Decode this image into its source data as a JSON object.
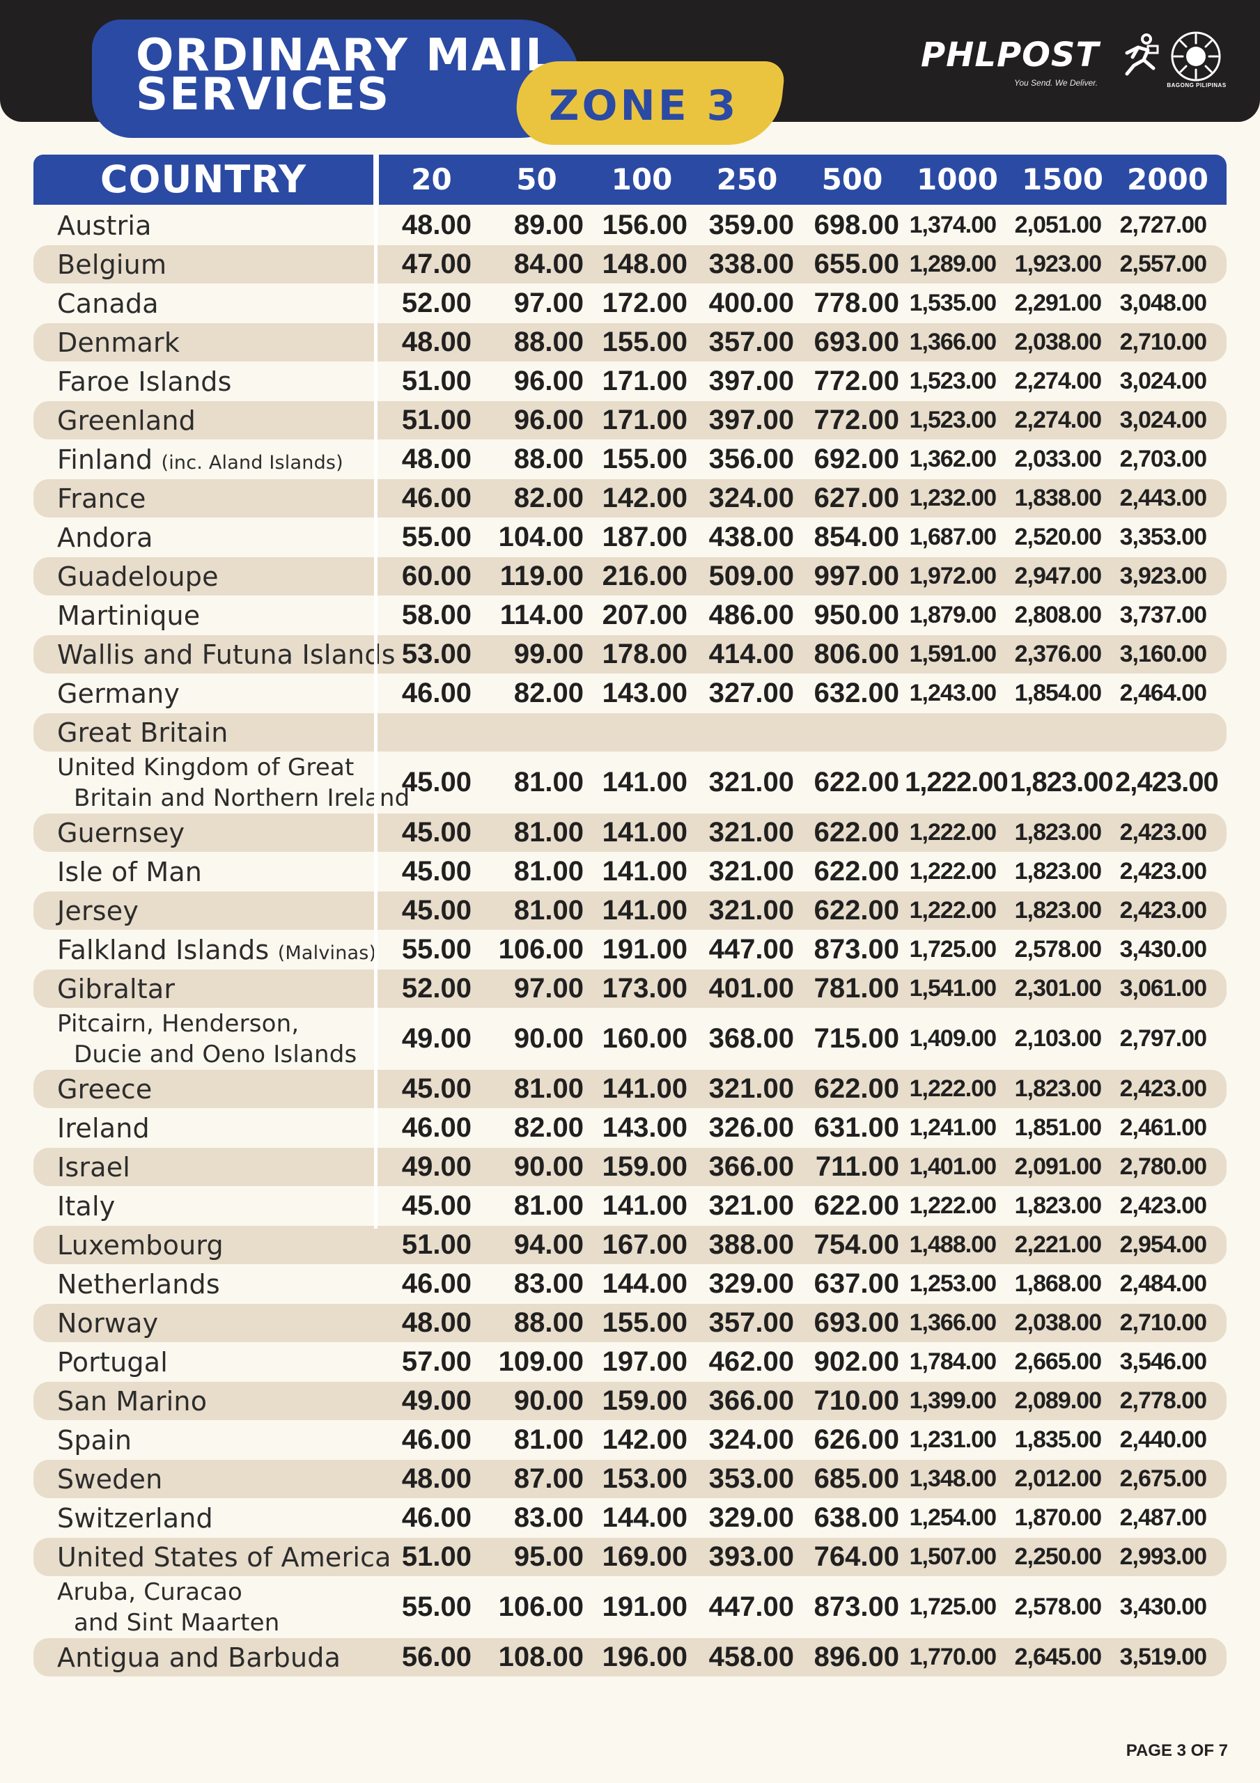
{
  "header": {
    "title_line1": "ORDINARY MAIL",
    "title_line2": "SERVICES",
    "zone": "ZONE 3",
    "brand": "PHLPOST",
    "brand_tagline": "You Send. We Deliver.",
    "seal_label": "BAGONG PILIPINAS"
  },
  "colors": {
    "primary_blue": "#2b4aa3",
    "accent_yellow": "#ebc43f",
    "header_dark": "#221f20",
    "row_shade": "#e8dccb",
    "background": "#fbf8ef"
  },
  "table": {
    "country_header": "COUNTRY",
    "weight_headers": [
      "20",
      "50",
      "100",
      "250",
      "500",
      "1000",
      "1500",
      "2000"
    ],
    "rows": [
      {
        "name": "Austria",
        "note": "",
        "values": [
          "48.00",
          "89.00",
          "156.00",
          "359.00",
          "698.00",
          "1,374.00",
          "2,051.00",
          "2,727.00"
        ]
      },
      {
        "name": "Belgium",
        "note": "",
        "values": [
          "47.00",
          "84.00",
          "148.00",
          "338.00",
          "655.00",
          "1,289.00",
          "1,923.00",
          "2,557.00"
        ]
      },
      {
        "name": "Canada",
        "note": "",
        "values": [
          "52.00",
          "97.00",
          "172.00",
          "400.00",
          "778.00",
          "1,535.00",
          "2,291.00",
          "3,048.00"
        ]
      },
      {
        "name": "Denmark",
        "note": "",
        "values": [
          "48.00",
          "88.00",
          "155.00",
          "357.00",
          "693.00",
          "1,366.00",
          "2,038.00",
          "2,710.00"
        ]
      },
      {
        "name": "Faroe Islands",
        "note": "",
        "values": [
          "51.00",
          "96.00",
          "171.00",
          "397.00",
          "772.00",
          "1,523.00",
          "2,274.00",
          "3,024.00"
        ]
      },
      {
        "name": "Greenland",
        "note": "",
        "values": [
          "51.00",
          "96.00",
          "171.00",
          "397.00",
          "772.00",
          "1,523.00",
          "2,274.00",
          "3,024.00"
        ]
      },
      {
        "name": "Finland",
        "note": "(inc. Aland Islands)",
        "values": [
          "48.00",
          "88.00",
          "155.00",
          "356.00",
          "692.00",
          "1,362.00",
          "2,033.00",
          "2,703.00"
        ]
      },
      {
        "name": "France",
        "note": "",
        "values": [
          "46.00",
          "82.00",
          "142.00",
          "324.00",
          "627.00",
          "1,232.00",
          "1,838.00",
          "2,443.00"
        ]
      },
      {
        "name": "Andora",
        "note": "",
        "values": [
          "55.00",
          "104.00",
          "187.00",
          "438.00",
          "854.00",
          "1,687.00",
          "2,520.00",
          "3,353.00"
        ]
      },
      {
        "name": "Guadeloupe",
        "note": "",
        "values": [
          "60.00",
          "119.00",
          "216.00",
          "509.00",
          "997.00",
          "1,972.00",
          "2,947.00",
          "3,923.00"
        ]
      },
      {
        "name": "Martinique",
        "note": "",
        "values": [
          "58.00",
          "114.00",
          "207.00",
          "486.00",
          "950.00",
          "1,879.00",
          "2,808.00",
          "3,737.00"
        ]
      },
      {
        "name": "Wallis and Futuna Islands",
        "note": "",
        "values": [
          "53.00",
          "99.00",
          "178.00",
          "414.00",
          "806.00",
          "1,591.00",
          "2,376.00",
          "3,160.00"
        ]
      },
      {
        "name": "Germany",
        "note": "",
        "values": [
          "46.00",
          "82.00",
          "143.00",
          "327.00",
          "632.00",
          "1,243.00",
          "1,854.00",
          "2,464.00"
        ]
      },
      {
        "name": "Great Britain",
        "note": "",
        "values": []
      },
      {
        "name": "United Kingdom of Great",
        "name2": "Britain and Northern Ireland",
        "note": "",
        "values": [
          "45.00",
          "81.00",
          "141.00",
          "321.00",
          "622.00",
          "1,222.00",
          "1,823.00",
          "2,423.00"
        ]
      },
      {
        "name": "Guernsey",
        "note": "",
        "values": [
          "45.00",
          "81.00",
          "141.00",
          "321.00",
          "622.00",
          "1,222.00",
          "1,823.00",
          "2,423.00"
        ]
      },
      {
        "name": "Isle of Man",
        "note": "",
        "values": [
          "45.00",
          "81.00",
          "141.00",
          "321.00",
          "622.00",
          "1,222.00",
          "1,823.00",
          "2,423.00"
        ]
      },
      {
        "name": "Jersey",
        "note": "",
        "values": [
          "45.00",
          "81.00",
          "141.00",
          "321.00",
          "622.00",
          "1,222.00",
          "1,823.00",
          "2,423.00"
        ]
      },
      {
        "name": "Falkland Islands",
        "note": "(Malvinas)",
        "values": [
          "55.00",
          "106.00",
          "191.00",
          "447.00",
          "873.00",
          "1,725.00",
          "2,578.00",
          "3,430.00"
        ]
      },
      {
        "name": "Gibraltar",
        "note": "",
        "values": [
          "52.00",
          "97.00",
          "173.00",
          "401.00",
          "781.00",
          "1,541.00",
          "2,301.00",
          "3,061.00"
        ]
      },
      {
        "name": "Pitcairn, Henderson,",
        "name2": "Ducie and Oeno Islands",
        "note": "",
        "values": [
          "49.00",
          "90.00",
          "160.00",
          "368.00",
          "715.00",
          "1,409.00",
          "2,103.00",
          "2,797.00"
        ]
      },
      {
        "name": "Greece",
        "note": "",
        "values": [
          "45.00",
          "81.00",
          "141.00",
          "321.00",
          "622.00",
          "1,222.00",
          "1,823.00",
          "2,423.00"
        ]
      },
      {
        "name": "Ireland",
        "note": "",
        "values": [
          "46.00",
          "82.00",
          "143.00",
          "326.00",
          "631.00",
          "1,241.00",
          "1,851.00",
          "2,461.00"
        ]
      },
      {
        "name": "Israel",
        "note": "",
        "values": [
          "49.00",
          "90.00",
          "159.00",
          "366.00",
          "711.00",
          "1,401.00",
          "2,091.00",
          "2,780.00"
        ]
      },
      {
        "name": "Italy",
        "note": "",
        "values": [
          "45.00",
          "81.00",
          "141.00",
          "321.00",
          "622.00",
          "1,222.00",
          "1,823.00",
          "2,423.00"
        ]
      },
      {
        "name": "Luxembourg",
        "note": "",
        "values": [
          "51.00",
          "94.00",
          "167.00",
          "388.00",
          "754.00",
          "1,488.00",
          "2,221.00",
          "2,954.00"
        ]
      },
      {
        "name": "Netherlands",
        "note": "",
        "values": [
          "46.00",
          "83.00",
          "144.00",
          "329.00",
          "637.00",
          "1,253.00",
          "1,868.00",
          "2,484.00"
        ]
      },
      {
        "name": "Norway",
        "note": "",
        "values": [
          "48.00",
          "88.00",
          "155.00",
          "357.00",
          "693.00",
          "1,366.00",
          "2,038.00",
          "2,710.00"
        ]
      },
      {
        "name": "Portugal",
        "note": "",
        "values": [
          "57.00",
          "109.00",
          "197.00",
          "462.00",
          "902.00",
          "1,784.00",
          "2,665.00",
          "3,546.00"
        ]
      },
      {
        "name": "San Marino",
        "note": "",
        "values": [
          "49.00",
          "90.00",
          "159.00",
          "366.00",
          "710.00",
          "1,399.00",
          "2,089.00",
          "2,778.00"
        ]
      },
      {
        "name": "Spain",
        "note": "",
        "values": [
          "46.00",
          "81.00",
          "142.00",
          "324.00",
          "626.00",
          "1,231.00",
          "1,835.00",
          "2,440.00"
        ]
      },
      {
        "name": "Sweden",
        "note": "",
        "values": [
          "48.00",
          "87.00",
          "153.00",
          "353.00",
          "685.00",
          "1,348.00",
          "2,012.00",
          "2,675.00"
        ]
      },
      {
        "name": "Switzerland",
        "note": "",
        "values": [
          "46.00",
          "83.00",
          "144.00",
          "329.00",
          "638.00",
          "1,254.00",
          "1,870.00",
          "2,487.00"
        ]
      },
      {
        "name": "United States of America",
        "note": "",
        "values": [
          "51.00",
          "95.00",
          "169.00",
          "393.00",
          "764.00",
          "1,507.00",
          "2,250.00",
          "2,993.00"
        ]
      },
      {
        "name": "Aruba, Curacao",
        "name2": "and Sint Maarten",
        "note": "",
        "values": [
          "55.00",
          "106.00",
          "191.00",
          "447.00",
          "873.00",
          "1,725.00",
          "2,578.00",
          "3,430.00"
        ]
      },
      {
        "name": "Antigua and Barbuda",
        "note": "",
        "values": [
          "56.00",
          "108.00",
          "196.00",
          "458.00",
          "896.00",
          "1,770.00",
          "2,645.00",
          "3,519.00"
        ]
      }
    ]
  },
  "footer": {
    "page": "PAGE 3 OF 7"
  }
}
